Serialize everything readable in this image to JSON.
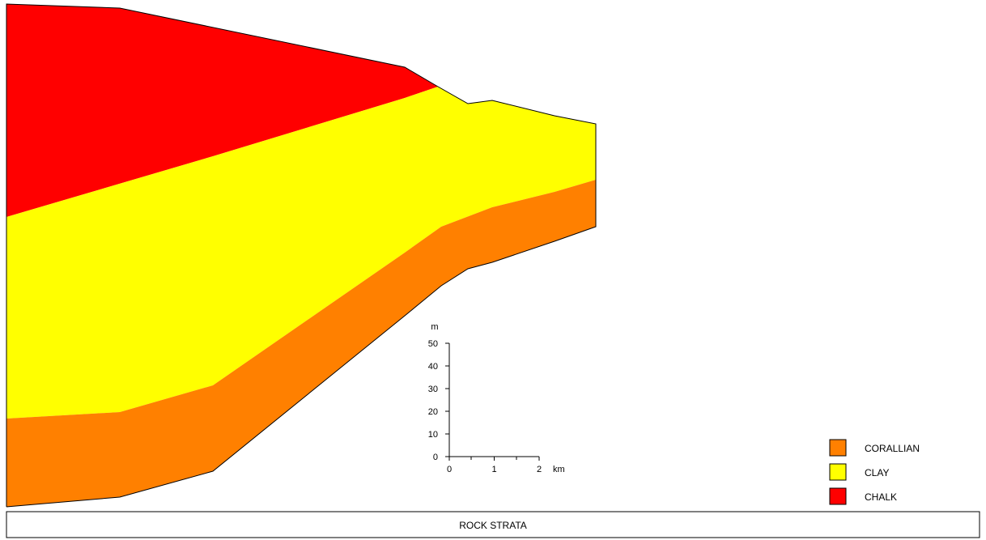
{
  "title": "ROCK STRATA",
  "legend": [
    {
      "label": "CORALLIAN",
      "color": "#ff8000"
    },
    {
      "label": "CLAY",
      "color": "#ffff00"
    },
    {
      "label": "CHALK",
      "color": "#ff0000"
    }
  ],
  "vertical_scale": {
    "unit": "m",
    "ticks": [
      0,
      10,
      20,
      30,
      40,
      50
    ]
  },
  "horizontal_scale": {
    "unit": "km",
    "ticks": [
      0,
      1,
      2
    ]
  }
}
